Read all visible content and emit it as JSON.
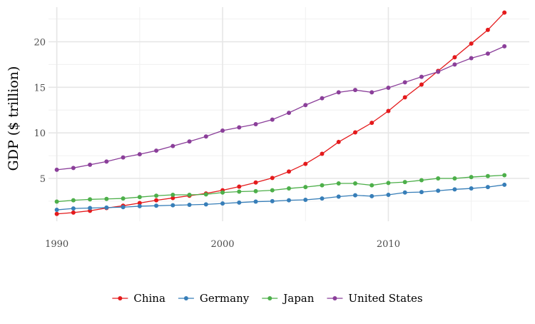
{
  "chart_data": {
    "type": "line",
    "title": "",
    "xlabel": "",
    "ylabel": "GDP ($ trillion)",
    "xlim": [
      1989.5,
      2018.5
    ],
    "ylim": [
      0.3,
      23.8
    ],
    "x_ticks": [
      1990,
      2000,
      2010
    ],
    "y_ticks": [
      5,
      10,
      15,
      20
    ],
    "x_minor_ticks": [
      1995,
      2005,
      2015
    ],
    "y_minor_ticks": [
      2.5,
      7.5,
      12.5,
      17.5,
      22.5
    ],
    "grid": true,
    "legend_position": "bottom",
    "x": [
      1990,
      1991,
      1992,
      1993,
      1994,
      1995,
      1996,
      1997,
      1998,
      1999,
      2000,
      2001,
      2002,
      2003,
      2004,
      2005,
      2006,
      2007,
      2008,
      2009,
      2010,
      2011,
      2012,
      2013,
      2014,
      2015,
      2016,
      2017
    ],
    "series": [
      {
        "name": "China",
        "color": "#e41a1c",
        "values": [
          1.1,
          1.25,
          1.45,
          1.75,
          2.0,
          2.3,
          2.6,
          2.85,
          3.1,
          3.35,
          3.7,
          4.1,
          4.55,
          5.05,
          5.75,
          6.6,
          7.7,
          9.0,
          10.05,
          11.1,
          12.4,
          13.9,
          15.3,
          16.8,
          18.3,
          19.8,
          21.3,
          23.2
        ]
      },
      {
        "name": "Germany",
        "color": "#377eb8",
        "values": [
          1.55,
          1.7,
          1.75,
          1.8,
          1.85,
          1.95,
          2.0,
          2.05,
          2.1,
          2.15,
          2.25,
          2.35,
          2.45,
          2.5,
          2.6,
          2.65,
          2.8,
          3.0,
          3.15,
          3.05,
          3.2,
          3.45,
          3.5,
          3.65,
          3.8,
          3.9,
          4.05,
          4.3
        ]
      },
      {
        "name": "Japan",
        "color": "#4daf4a",
        "values": [
          2.45,
          2.6,
          2.7,
          2.75,
          2.8,
          2.95,
          3.1,
          3.2,
          3.2,
          3.25,
          3.45,
          3.55,
          3.6,
          3.7,
          3.9,
          4.05,
          4.25,
          4.45,
          4.45,
          4.25,
          4.5,
          4.6,
          4.8,
          5.0,
          5.0,
          5.15,
          5.25,
          5.35
        ]
      },
      {
        "name": "United States",
        "color": "#8b3f9a",
        "values": [
          5.95,
          6.15,
          6.5,
          6.85,
          7.3,
          7.65,
          8.05,
          8.55,
          9.05,
          9.6,
          10.25,
          10.6,
          10.95,
          11.45,
          12.2,
          13.05,
          13.8,
          14.45,
          14.7,
          14.45,
          14.95,
          15.55,
          16.15,
          16.7,
          17.5,
          18.2,
          18.7,
          19.5
        ]
      }
    ]
  }
}
